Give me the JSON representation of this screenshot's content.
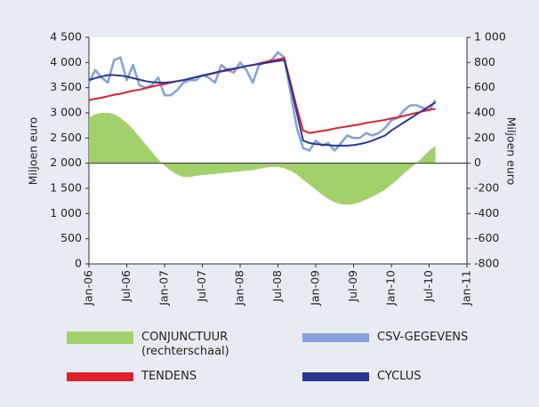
{
  "chart_data": {
    "type": "line",
    "y_label": "Miljoen euro",
    "y2_label": "Miljoen euro",
    "x": [
      "2006-01",
      "2006-02",
      "2006-03",
      "2006-04",
      "2006-05",
      "2006-06",
      "2006-07",
      "2006-08",
      "2006-09",
      "2006-10",
      "2006-11",
      "2006-12",
      "2007-01",
      "2007-02",
      "2007-03",
      "2007-04",
      "2007-05",
      "2007-06",
      "2007-07",
      "2007-08",
      "2007-09",
      "2007-10",
      "2007-11",
      "2007-12",
      "2008-01",
      "2008-02",
      "2008-03",
      "2008-04",
      "2008-05",
      "2008-06",
      "2008-07",
      "2008-08",
      "2008-09",
      "2008-10",
      "2008-11",
      "2008-12",
      "2009-01",
      "2009-02",
      "2009-03",
      "2009-04",
      "2009-05",
      "2009-06",
      "2009-07",
      "2009-08",
      "2009-09",
      "2009-10",
      "2009-11",
      "2009-12",
      "2010-01",
      "2010-02",
      "2010-03",
      "2010-04",
      "2010-05",
      "2010-06",
      "2010-07",
      "2010-08"
    ],
    "xlim": [
      "2006-01",
      "2011-01"
    ],
    "xticks": [
      {
        "value": "2006-01",
        "label": "Jan-06"
      },
      {
        "value": "2006-07",
        "label": "Jul-06"
      },
      {
        "value": "2007-01",
        "label": "Jan-07"
      },
      {
        "value": "2007-07",
        "label": "Jul-07"
      },
      {
        "value": "2008-01",
        "label": "Jan-08"
      },
      {
        "value": "2008-07",
        "label": "Jul-08"
      },
      {
        "value": "2009-01",
        "label": "Jan-09"
      },
      {
        "value": "2009-07",
        "label": "Jul-09"
      },
      {
        "value": "2010-01",
        "label": "Jan-10"
      },
      {
        "value": "2010-07",
        "label": "Jul-10"
      },
      {
        "value": "2011-01",
        "label": "Jan-11"
      }
    ],
    "ylim": [
      0,
      4500
    ],
    "yticks": [
      0,
      500,
      {
        "value": 1000,
        "label": "1 000"
      },
      {
        "value": 1500,
        "label": "1 500"
      },
      {
        "value": 2000,
        "label": "2 000"
      },
      {
        "value": 2500,
        "label": "2 500"
      },
      {
        "value": 3000,
        "label": "3 000"
      },
      {
        "value": 3500,
        "label": "3 500"
      },
      {
        "value": 4000,
        "label": "4 000"
      },
      {
        "value": 4500,
        "label": "4 500"
      }
    ],
    "y2lim": [
      -800,
      1000
    ],
    "y2ticks": [
      -800,
      -600,
      -400,
      -200,
      0,
      200,
      400,
      600,
      800,
      {
        "value": 1000,
        "label": "1 000"
      }
    ],
    "series": [
      {
        "name": "CONJUNCTUUR (rechterschaal)",
        "kind": "area",
        "axis": "y2",
        "color": "#a2d16c",
        "values": [
          360,
          390,
          400,
          400,
          390,
          360,
          320,
          270,
          210,
          150,
          90,
          30,
          -20,
          -60,
          -90,
          -110,
          -110,
          -100,
          -95,
          -90,
          -85,
          -80,
          -75,
          -70,
          -65,
          -60,
          -55,
          -45,
          -35,
          -30,
          -30,
          -40,
          -60,
          -90,
          -130,
          -170,
          -210,
          -250,
          -285,
          -310,
          -325,
          -330,
          -325,
          -310,
          -290,
          -265,
          -240,
          -210,
          -170,
          -130,
          -80,
          -40,
          0,
          50,
          100,
          140
        ]
      },
      {
        "name": "CSV-GEGEVENS",
        "kind": "line",
        "color": "#86a3da",
        "values": [
          3600,
          3850,
          3700,
          3600,
          4050,
          4100,
          3650,
          3950,
          3550,
          3500,
          3550,
          3700,
          3350,
          3350,
          3450,
          3600,
          3650,
          3650,
          3750,
          3700,
          3600,
          3950,
          3850,
          3800,
          4000,
          3850,
          3600,
          3950,
          4000,
          4050,
          4200,
          4100,
          3400,
          2700,
          2300,
          2250,
          2450,
          2350,
          2400,
          2250,
          2400,
          2550,
          2500,
          2500,
          2600,
          2550,
          2600,
          2700,
          2850,
          2900,
          3050,
          3150,
          3150,
          3100,
          3050,
          3250
        ]
      },
      {
        "name": "TENDENS",
        "kind": "line",
        "color": "#e11f2a",
        "values": [
          3250,
          3280,
          3300,
          3330,
          3360,
          3380,
          3410,
          3440,
          3460,
          3490,
          3520,
          3550,
          3570,
          3600,
          3630,
          3650,
          3680,
          3710,
          3740,
          3760,
          3790,
          3820,
          3840,
          3870,
          3900,
          3930,
          3950,
          3980,
          4010,
          4040,
          4060,
          4090,
          3600,
          3100,
          2650,
          2600,
          2620,
          2640,
          2660,
          2690,
          2710,
          2730,
          2750,
          2770,
          2800,
          2820,
          2840,
          2860,
          2890,
          2910,
          2940,
          2970,
          3000,
          3030,
          3060,
          3080
        ]
      },
      {
        "name": "CYCLUS",
        "kind": "line",
        "color": "#283891",
        "values": [
          3650,
          3690,
          3720,
          3750,
          3750,
          3740,
          3720,
          3690,
          3660,
          3630,
          3610,
          3600,
          3600,
          3610,
          3630,
          3650,
          3680,
          3710,
          3740,
          3770,
          3800,
          3830,
          3860,
          3880,
          3900,
          3930,
          3950,
          3970,
          3990,
          4010,
          4030,
          4050,
          3550,
          3000,
          2450,
          2400,
          2380,
          2370,
          2360,
          2350,
          2350,
          2350,
          2360,
          2380,
          2410,
          2450,
          2500,
          2550,
          2650,
          2730,
          2810,
          2890,
          2970,
          3050,
          3130,
          3210
        ]
      }
    ]
  }
}
